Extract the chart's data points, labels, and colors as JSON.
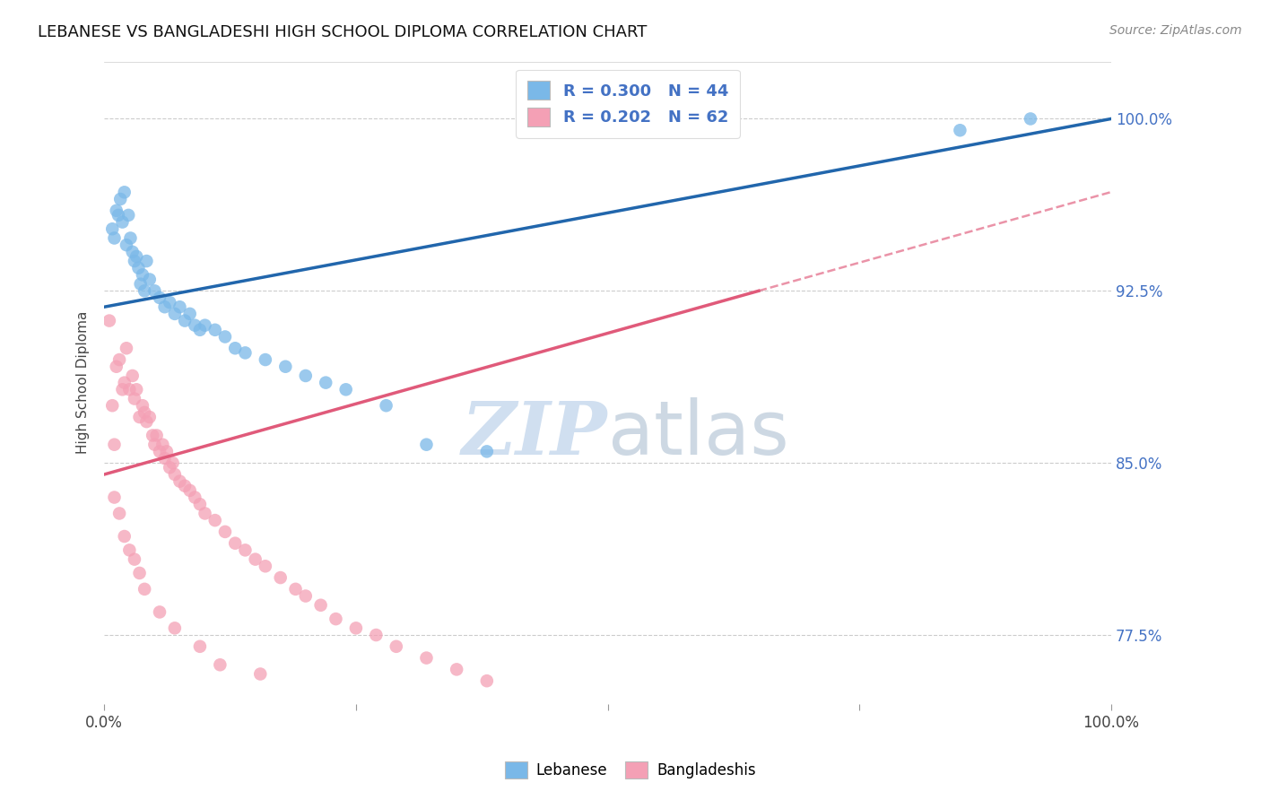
{
  "title": "LEBANESE VS BANGLADESHI HIGH SCHOOL DIPLOMA CORRELATION CHART",
  "source": "Source: ZipAtlas.com",
  "ylabel": "High School Diploma",
  "xlim": [
    0,
    1.0
  ],
  "ylim": [
    0.745,
    1.025
  ],
  "yticks": [
    0.775,
    0.85,
    0.925,
    1.0
  ],
  "ytick_labels": [
    "77.5%",
    "85.0%",
    "92.5%",
    "100.0%"
  ],
  "lebanese_color": "#7ab8e8",
  "bangladeshi_color": "#f4a0b5",
  "line_lebanese_color": "#2166ac",
  "line_bangladeshi_color": "#e05a7a",
  "watermark_color": "#d0dff0",
  "leb_line_x0": 0.0,
  "leb_line_y0": 0.918,
  "leb_line_x1": 1.0,
  "leb_line_y1": 1.0,
  "ban_line_x0": 0.0,
  "ban_line_y0": 0.845,
  "ban_line_x1": 0.65,
  "ban_line_y1": 0.925,
  "lebanese_x": [
    0.008,
    0.01,
    0.012,
    0.014,
    0.016,
    0.018,
    0.02,
    0.022,
    0.024,
    0.026,
    0.028,
    0.03,
    0.032,
    0.034,
    0.036,
    0.038,
    0.04,
    0.042,
    0.045,
    0.05,
    0.055,
    0.06,
    0.065,
    0.07,
    0.075,
    0.08,
    0.085,
    0.09,
    0.095,
    0.1,
    0.11,
    0.12,
    0.13,
    0.14,
    0.16,
    0.18,
    0.2,
    0.22,
    0.24,
    0.28,
    0.32,
    0.38,
    0.85,
    0.92
  ],
  "lebanese_y": [
    0.952,
    0.948,
    0.96,
    0.958,
    0.965,
    0.955,
    0.968,
    0.945,
    0.958,
    0.948,
    0.942,
    0.938,
    0.94,
    0.935,
    0.928,
    0.932,
    0.925,
    0.938,
    0.93,
    0.925,
    0.922,
    0.918,
    0.92,
    0.915,
    0.918,
    0.912,
    0.915,
    0.91,
    0.908,
    0.91,
    0.908,
    0.905,
    0.9,
    0.898,
    0.895,
    0.892,
    0.888,
    0.885,
    0.882,
    0.875,
    0.858,
    0.855,
    0.995,
    1.0
  ],
  "bangladeshi_x": [
    0.005,
    0.008,
    0.01,
    0.012,
    0.015,
    0.018,
    0.02,
    0.022,
    0.025,
    0.028,
    0.03,
    0.032,
    0.035,
    0.038,
    0.04,
    0.042,
    0.045,
    0.048,
    0.05,
    0.052,
    0.055,
    0.058,
    0.06,
    0.062,
    0.065,
    0.068,
    0.07,
    0.075,
    0.08,
    0.085,
    0.09,
    0.095,
    0.1,
    0.11,
    0.12,
    0.13,
    0.14,
    0.15,
    0.16,
    0.175,
    0.19,
    0.2,
    0.215,
    0.23,
    0.25,
    0.27,
    0.29,
    0.32,
    0.35,
    0.38,
    0.01,
    0.015,
    0.02,
    0.025,
    0.03,
    0.035,
    0.04,
    0.055,
    0.07,
    0.095,
    0.115,
    0.155
  ],
  "bangladeshi_y": [
    0.912,
    0.875,
    0.858,
    0.892,
    0.895,
    0.882,
    0.885,
    0.9,
    0.882,
    0.888,
    0.878,
    0.882,
    0.87,
    0.875,
    0.872,
    0.868,
    0.87,
    0.862,
    0.858,
    0.862,
    0.855,
    0.858,
    0.852,
    0.855,
    0.848,
    0.85,
    0.845,
    0.842,
    0.84,
    0.838,
    0.835,
    0.832,
    0.828,
    0.825,
    0.82,
    0.815,
    0.812,
    0.808,
    0.805,
    0.8,
    0.795,
    0.792,
    0.788,
    0.782,
    0.778,
    0.775,
    0.77,
    0.765,
    0.76,
    0.755,
    0.835,
    0.828,
    0.818,
    0.812,
    0.808,
    0.802,
    0.795,
    0.785,
    0.778,
    0.77,
    0.762,
    0.758
  ]
}
